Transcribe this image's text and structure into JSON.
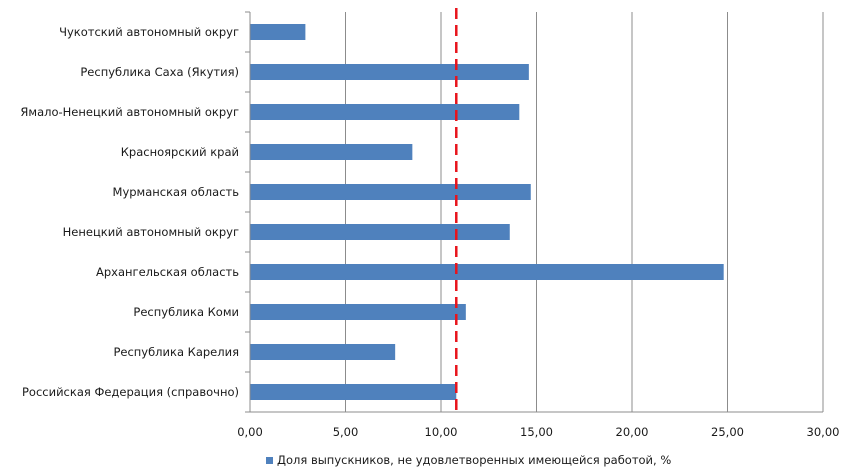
{
  "chart_data": {
    "type": "bar",
    "orientation": "horizontal",
    "title": "",
    "xlabel": "",
    "ylabel": "",
    "categories": [
      "Чукотский автономный округ",
      "Республика Саха (Якутия)",
      "Ямало-Ненецкий  автономный округ",
      "Красноярский край",
      "Мурманская область",
      "Ненецкий  автономный округ",
      "Архангельская область",
      "Республика Коми",
      "Республика Карелия",
      "Российская Федерация  (справочно)"
    ],
    "series": [
      {
        "name": "Доля выпускников, не удовлетворенных имеющейся  работой, %",
        "color": "#4f81bd",
        "values": [
          2.9,
          14.6,
          14.1,
          8.5,
          14.7,
          13.6,
          24.8,
          11.3,
          7.6,
          10.8
        ]
      }
    ],
    "xlim": [
      0,
      30
    ],
    "xticks": [
      "0,00",
      "5,00",
      "10,00",
      "15,00",
      "20,00",
      "25,00",
      "30,00"
    ],
    "xtick_values": [
      0,
      5,
      10,
      15,
      20,
      25,
      30
    ],
    "reference_line": {
      "value": 10.8,
      "color": "#e8141c",
      "style": "dashed"
    },
    "grid": "vertical",
    "legend_position": "bottom"
  }
}
